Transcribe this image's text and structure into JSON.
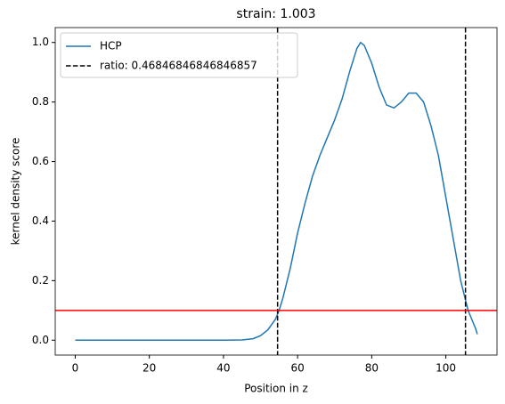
{
  "chart_data": {
    "type": "line",
    "title": "strain: 1.003",
    "x_label": "Position in z",
    "y_label": "kernel density score",
    "x": [
      0,
      10,
      20,
      30,
      40,
      45,
      48,
      50,
      52,
      54,
      55,
      56,
      58,
      60,
      62,
      64,
      66,
      68,
      70,
      72,
      74,
      76,
      77,
      78,
      80,
      82,
      84,
      86,
      88,
      90,
      92,
      94,
      96,
      98,
      100,
      102,
      104,
      106,
      107,
      108,
      108.5
    ],
    "series": [
      {
        "name": "HCP",
        "color": "#1f77b4",
        "values": [
          0,
          0,
          0,
          0,
          0,
          0.001,
          0.005,
          0.015,
          0.035,
          0.07,
          0.1,
          0.14,
          0.24,
          0.36,
          0.46,
          0.55,
          0.62,
          0.68,
          0.74,
          0.81,
          0.9,
          0.98,
          1.0,
          0.99,
          0.93,
          0.85,
          0.79,
          0.78,
          0.8,
          0.83,
          0.83,
          0.8,
          0.72,
          0.62,
          0.48,
          0.34,
          0.2,
          0.1,
          0.07,
          0.04,
          0.02
        ]
      }
    ],
    "vlines": {
      "name": "ratio: 0.46846846846846857",
      "color": "#000000",
      "x": [
        54.6,
        105.3
      ]
    },
    "hline": {
      "y": 0.1,
      "color": "#ff0000"
    },
    "xlim": [
      -5.4,
      113.8
    ],
    "ylim": [
      -0.05,
      1.05
    ],
    "xticks": [
      0,
      20,
      40,
      60,
      80,
      100
    ],
    "yticks": [
      {
        "value": 0,
        "label": "0.0"
      },
      {
        "value": 0.2,
        "label": "0.2"
      },
      {
        "value": 0.4,
        "label": "0.4"
      },
      {
        "value": 0.6,
        "label": "0.6"
      },
      {
        "value": 0.8,
        "label": "0.8"
      },
      {
        "value": 1,
        "label": "1.0"
      }
    ],
    "legend": "upper left"
  }
}
